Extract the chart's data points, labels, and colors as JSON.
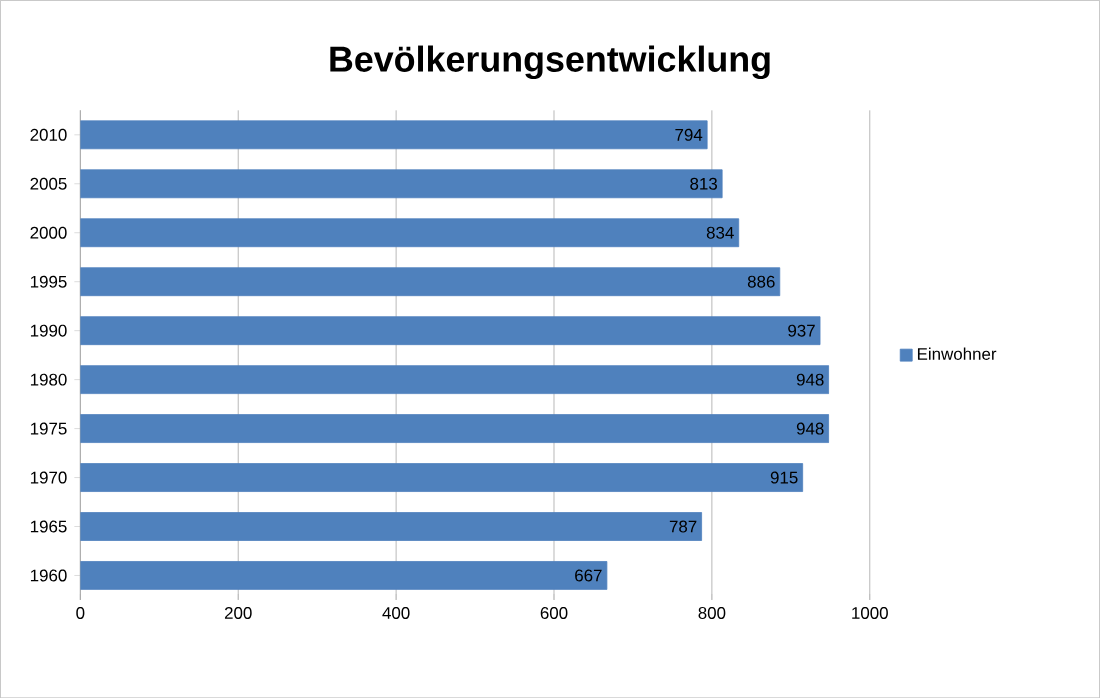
{
  "chart_data": {
    "type": "bar",
    "orientation": "horizontal",
    "title": "Bevölkerungsentwicklung",
    "categories": [
      "2010",
      "2005",
      "2000",
      "1995",
      "1990",
      "1980",
      "1975",
      "1970",
      "1965",
      "1960"
    ],
    "series": [
      {
        "name": "Einwohner",
        "color": "#4f81bd",
        "values": [
          794,
          813,
          834,
          886,
          937,
          948,
          948,
          915,
          787,
          667
        ]
      }
    ],
    "xlim": [
      0,
      1000
    ],
    "xticks": [
      0,
      200,
      400,
      600,
      800,
      1000
    ],
    "grid": "x",
    "legend": "right",
    "data_labels": true
  }
}
